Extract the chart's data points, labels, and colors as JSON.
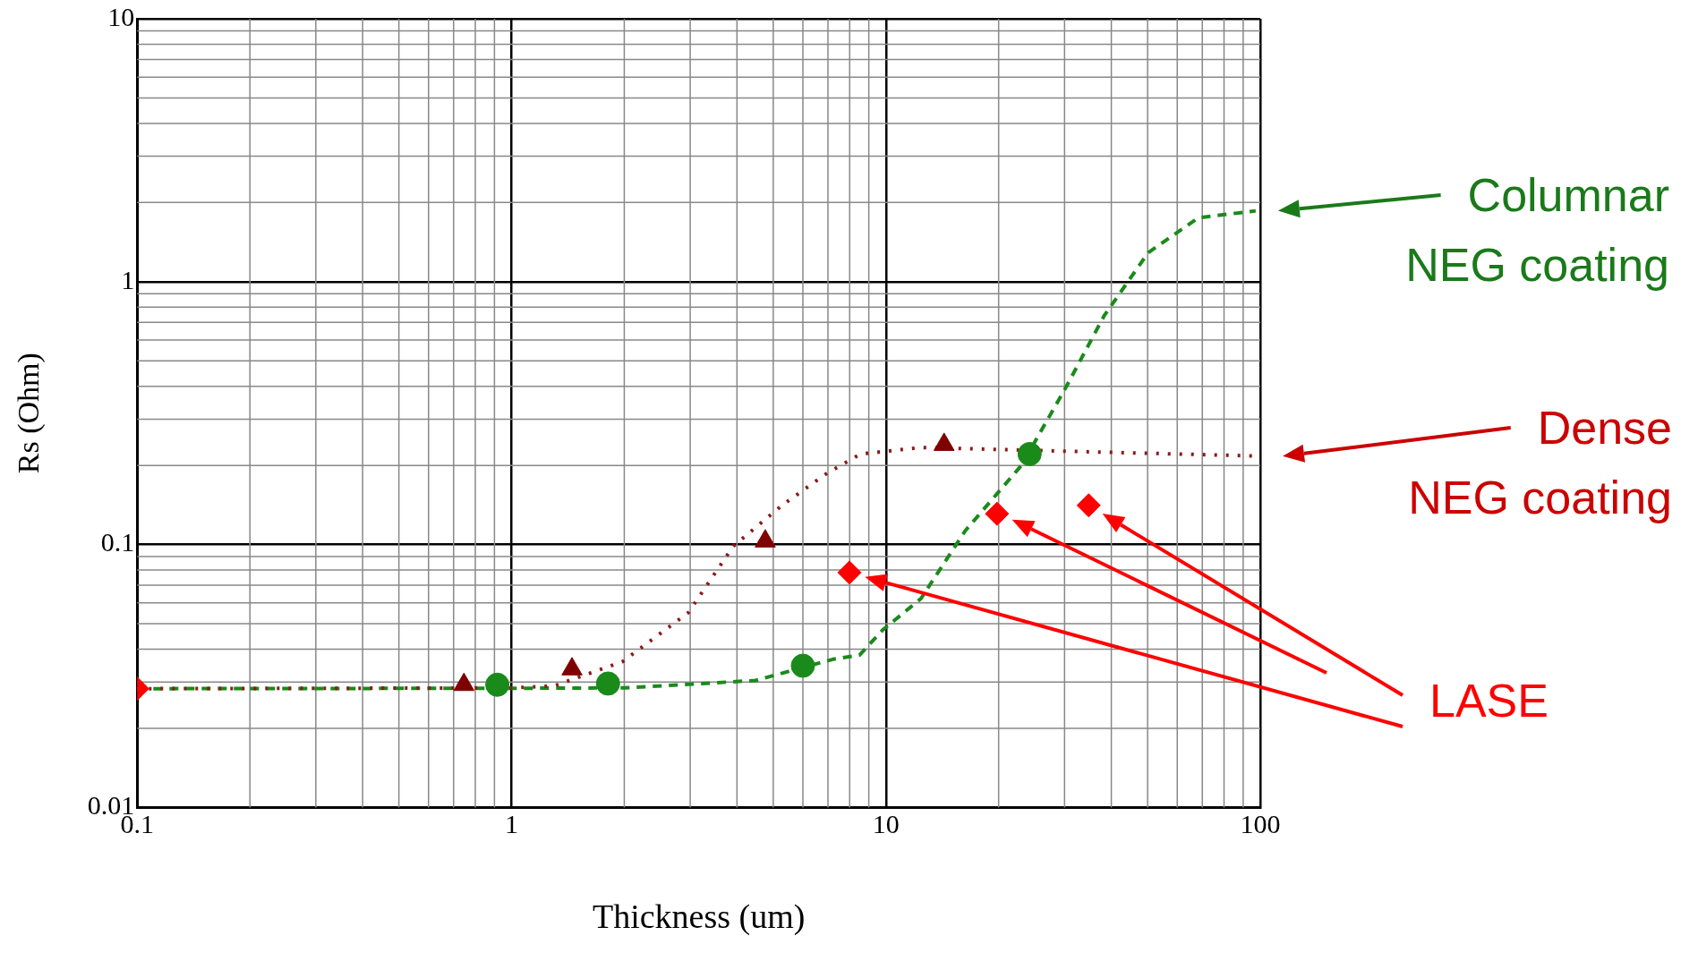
{
  "chart_data": {
    "type": "scatter",
    "xlabel": "Thickness (um)",
    "ylabel": "Rs (Ohm)",
    "log": "xy",
    "grid": true,
    "legend": false,
    "xlim": [
      0.1,
      100
    ],
    "xticks": [
      0.1,
      1,
      10,
      100
    ],
    "ylim": [
      0.01,
      10
    ],
    "yticks": [
      0.01,
      0.1,
      1,
      10
    ],
    "series": [
      {
        "type": "line",
        "color": "#8b1a1a",
        "line_style": "dotted",
        "marker": "none",
        "x": [
          0.1,
          1,
          1.3,
          1.98,
          2.97,
          3.91,
          5.31,
          6.97,
          8.55,
          12.4,
          100
        ],
        "values": [
          0.0283,
          0.0285,
          0.029,
          0.0359,
          0.0552,
          0.0986,
          0.142,
          0.187,
          0.221,
          0.234,
          0.217
        ]
      },
      {
        "type": "line",
        "color": "#1a8a1a",
        "line_style": "dashed",
        "marker": "none",
        "x": [
          0.1,
          1,
          2,
          4.48,
          7.21,
          8.5,
          9.8,
          12.4,
          16.3,
          23,
          30.1,
          38.3,
          50.2,
          68.3,
          97.2
        ],
        "values": [
          0.0283,
          0.0284,
          0.0285,
          0.0304,
          0.0366,
          0.038,
          0.0473,
          0.0623,
          0.113,
          0.2,
          0.391,
          0.743,
          1.29,
          1.75,
          1.86
        ]
      },
      {
        "color": "#7f0000",
        "marker": "triangle",
        "x": [
          0.746,
          1.45,
          4.76,
          14.3
        ],
        "values": [
          0.0293,
          0.0336,
          0.103,
          0.24
        ]
      },
      {
        "color": "#1a8a1a",
        "marker": "circle",
        "x": [
          0.916,
          1.81,
          6.0,
          24.2
        ],
        "values": [
          0.0293,
          0.0296,
          0.0346,
          0.221
        ]
      },
      {
        "color": "#ff0000",
        "marker": "diamond",
        "x": [
          0.1,
          7.99,
          19.8,
          34.8
        ],
        "values": [
          0.0283,
          0.0783,
          0.131,
          0.141
        ]
      }
    ],
    "annotations": [
      "Columnar NEG coating",
      "Dense NEG coating",
      "LASE"
    ]
  }
}
